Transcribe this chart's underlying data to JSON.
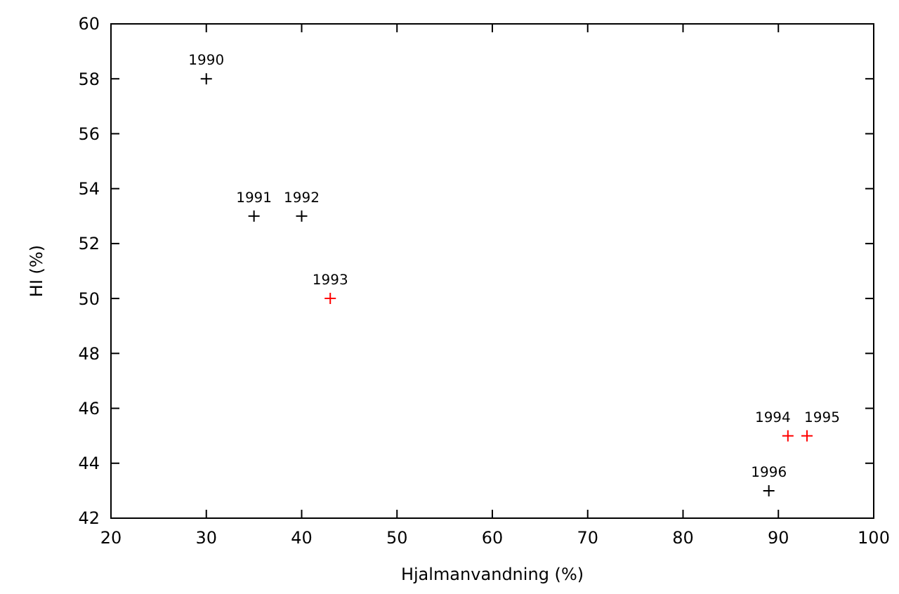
{
  "chart_data": {
    "type": "scatter",
    "xlabel": "Hjalmanvandning (%)",
    "ylabel": "HI (%)",
    "x": [
      30,
      35,
      40,
      43,
      91,
      93,
      89
    ],
    "values": [
      58,
      53,
      53,
      50,
      45,
      45,
      43
    ],
    "colors": [
      "#000000",
      "#000000",
      "#000000",
      "#ff0000",
      "#ff0000",
      "#ff0000",
      "#000000"
    ],
    "marker": "cross",
    "grid": false,
    "xlim": [
      20,
      100
    ],
    "xticks": [
      20,
      30,
      40,
      50,
      60,
      70,
      80,
      90,
      100
    ],
    "ylim": [
      42,
      60
    ],
    "yticks": [
      42,
      44,
      46,
      48,
      50,
      52,
      54,
      56,
      58,
      60
    ],
    "annotations": [
      {
        "text": "1990",
        "x": 30,
        "y": 58
      },
      {
        "text": "1991",
        "x": 35,
        "y": 53
      },
      {
        "text": "1992",
        "x": 40,
        "y": 53
      },
      {
        "text": "1993",
        "x": 43,
        "y": 50
      },
      {
        "text": "1994",
        "x": 91,
        "y": 45
      },
      {
        "text": "1995",
        "x": 93,
        "y": 45
      },
      {
        "text": "1996",
        "x": 89,
        "y": 43
      }
    ]
  }
}
